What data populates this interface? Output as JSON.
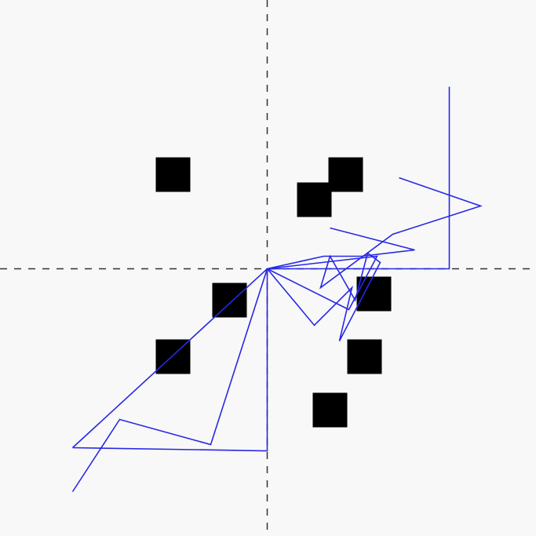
{
  "colors": {
    "background": "#f8f8f8",
    "axes": "#333333",
    "obstacles": "#000000",
    "path": "#2828e6"
  },
  "scene": {
    "axes": {
      "style": "dashed",
      "origin": [
        0,
        0
      ]
    },
    "obstacles": [
      {
        "cx": -3.0,
        "cy": 3.0
      },
      {
        "cx": 1.5,
        "cy": 2.2
      },
      {
        "cx": 2.5,
        "cy": 3.0
      },
      {
        "cx": -1.2,
        "cy": -1.0
      },
      {
        "cx": 3.4,
        "cy": -0.8
      },
      {
        "cx": -3.0,
        "cy": -2.8
      },
      {
        "cx": 3.1,
        "cy": -2.8
      },
      {
        "cx": 2.0,
        "cy": -4.5
      }
    ],
    "obstacle_size": 1.1,
    "paths": [
      {
        "points": [
          [
            5.8,
            5.8
          ],
          [
            5.8,
            0
          ],
          [
            0,
            0
          ],
          [
            -6.2,
            -5.7
          ]
        ]
      },
      {
        "points": [
          [
            0,
            0
          ],
          [
            -1.8,
            -5.6
          ],
          [
            -4.7,
            -4.8
          ],
          [
            -6.2,
            -7.1
          ]
        ]
      },
      {
        "points": [
          [
            -6.2,
            -5.7
          ],
          [
            0,
            -5.8
          ],
          [
            0,
            0
          ]
        ]
      },
      {
        "points": [
          [
            4.2,
            2.9
          ],
          [
            6.8,
            2.0
          ],
          [
            4.0,
            1.1
          ],
          [
            1.7,
            -0.6
          ],
          [
            2.0,
            0.4
          ],
          [
            2.8,
            -1.0
          ],
          [
            3.2,
            0.5
          ],
          [
            3.6,
            0.2
          ],
          [
            2.3,
            -2.3
          ],
          [
            2.7,
            -0.6
          ],
          [
            1.5,
            -1.8
          ],
          [
            0,
            0
          ],
          [
            1.8,
            0.4
          ],
          [
            3.0,
            0.4
          ],
          [
            4.7,
            0.6
          ],
          [
            2.0,
            1.3
          ]
        ]
      },
      {
        "points": [
          [
            0,
            0
          ],
          [
            3.5,
            0.4
          ],
          [
            2.6,
            -1.3
          ],
          [
            0,
            0
          ]
        ]
      }
    ]
  }
}
